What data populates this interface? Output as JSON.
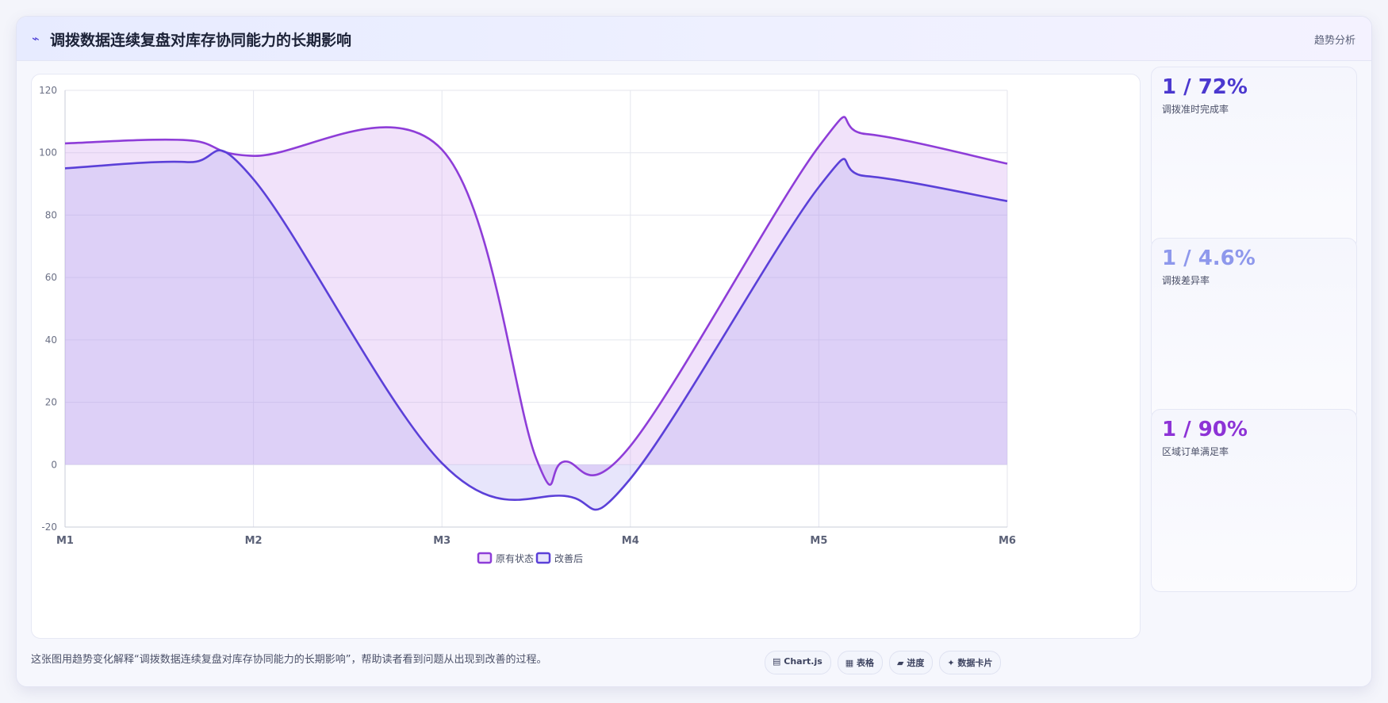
{
  "header": {
    "icon": "trend-line-icon",
    "title": "调拨数据连续复盘对库存协同能力的长期影响",
    "right_label": "趋势分析"
  },
  "chart_data": {
    "type": "area",
    "categories": [
      "M1",
      "M2",
      "M3",
      "M4",
      "M5",
      "M6"
    ],
    "ylim": [
      -20,
      120
    ],
    "yticks": [
      -20,
      0,
      20,
      40,
      60,
      80,
      100,
      120
    ],
    "grid": true,
    "legend_position": "bottom-center",
    "series": [
      {
        "name": "原有状态",
        "color": "#8e3dd8",
        "fill": "rgba(204,150,238,0.28)",
        "values": [
          103,
          104,
          99,
          101,
          2,
          1,
          6,
          102,
          106,
          96.5
        ],
        "x": [
          0,
          0.65,
          1,
          2,
          2.5,
          2.65,
          3,
          4,
          4.25,
          5
        ]
      },
      {
        "name": "改善后",
        "color": "#5b40d8",
        "fill": "rgba(170,160,240,0.28)",
        "values": [
          95,
          97,
          91.5,
          0.5,
          -10,
          -4.5,
          89,
          92.5,
          84.5
        ],
        "x": [
          0,
          0.65,
          1,
          2,
          2.65,
          3,
          4,
          4.25,
          5
        ]
      }
    ]
  },
  "kpis": [
    {
      "value": "1 / 72%",
      "label": "调拨准时完成率",
      "color": "#4b38cf"
    },
    {
      "value": "1 / 4.6%",
      "label": "调拨差异率",
      "color": "#8e98ec"
    },
    {
      "value": "1 / 90%",
      "label": "区域订单满足率",
      "color": "#8d33d6"
    }
  ],
  "footer": {
    "note": "这张图用趋势变化解释“调拨数据连续复盘对库存协同能力的长期影响”，帮助读者看到问题从出现到改善的过程。",
    "pills": [
      {
        "icon": "chart-icon",
        "glyph": "▤",
        "label": "Chart.js"
      },
      {
        "icon": "table-icon",
        "glyph": "▦",
        "label": "表格"
      },
      {
        "icon": "progress-icon",
        "glyph": "▰",
        "label": "进度"
      },
      {
        "icon": "sparkle-icon",
        "glyph": "✦",
        "label": "数据卡片"
      }
    ]
  }
}
